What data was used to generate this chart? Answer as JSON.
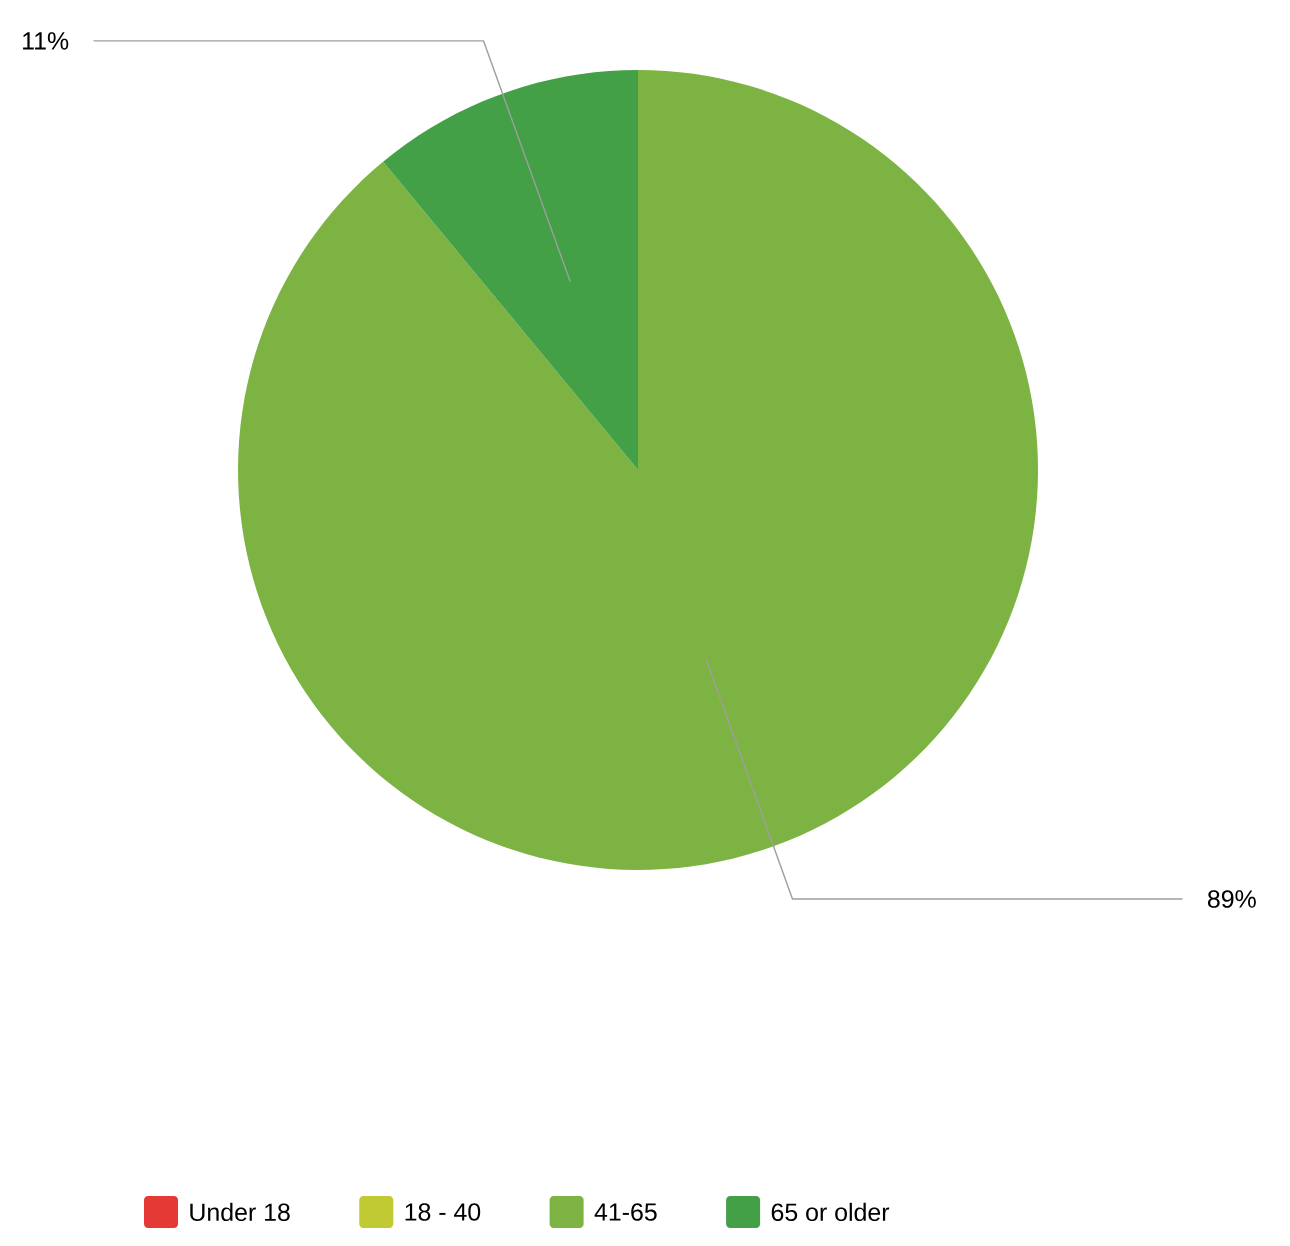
{
  "chart_data": {
    "type": "pie",
    "categories": [
      "Under 18",
      "18 - 40",
      "41-65",
      "65 or older"
    ],
    "values": [
      0,
      0,
      89,
      11
    ],
    "colors": [
      "#e53935",
      "#c0ca33",
      "#7cb342",
      "#43a047"
    ],
    "value_labels": [
      null,
      null,
      "89%",
      "11%"
    ],
    "legend": "bottom"
  }
}
